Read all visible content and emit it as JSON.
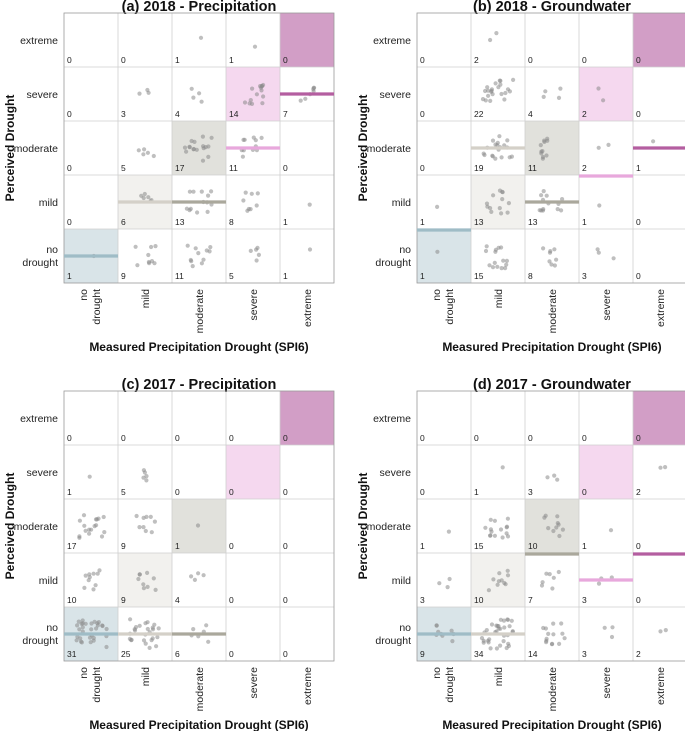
{
  "figure": {
    "row_categories": [
      "extreme",
      "severe",
      "moderate",
      "mild",
      "no drought"
    ],
    "col_categories": [
      "no drought",
      "mild",
      "moderate",
      "severe",
      "extreme"
    ],
    "colors": {
      "no drought": "#9fbcc6",
      "mild": "#d4d0c8",
      "moderate": "#aaa89c",
      "severe": "#e8a8dc",
      "extreme": "#b45ea0",
      "point": "#8a8a8a",
      "grid": "#cfcfcf",
      "frame": "#9a9a9a"
    }
  },
  "chart_data": [
    {
      "type": "heatmap",
      "title": "(a) 2018 - Precipitation",
      "xlabel": "Measured Precipitation Drought (SPI6)",
      "ylabel": "Perceived Drought",
      "rows": [
        "extreme",
        "severe",
        "moderate",
        "mild",
        "no drought"
      ],
      "columns": [
        "no drought",
        "mild",
        "moderate",
        "severe",
        "extreme"
      ],
      "counts": [
        [
          0,
          0,
          1,
          1,
          0
        ],
        [
          0,
          3,
          4,
          14,
          7
        ],
        [
          0,
          5,
          17,
          11,
          0
        ],
        [
          0,
          6,
          13,
          8,
          1
        ],
        [
          1,
          9,
          11,
          5,
          1
        ]
      ],
      "median_lines": [
        {
          "category": "extreme",
          "row": "severe",
          "from_col": "extreme",
          "to_col": "extreme"
        },
        {
          "category": "severe",
          "row": "moderate",
          "from_col": "severe",
          "to_col": "severe"
        },
        {
          "category": "moderate",
          "row": "mild",
          "from_col": "moderate",
          "to_col": "moderate"
        },
        {
          "category": "mild",
          "row": "mild",
          "from_col": "mild",
          "to_col": "mild"
        },
        {
          "category": "no drought",
          "row": "no drought",
          "from_col": "no drought",
          "to_col": "no drought"
        }
      ]
    },
    {
      "type": "heatmap",
      "title": "(b) 2018 - Groundwater",
      "xlabel": "Measured Precipitation Drought (SPI6)",
      "ylabel": "Perceived Drought",
      "rows": [
        "extreme",
        "severe",
        "moderate",
        "mild",
        "no drought"
      ],
      "columns": [
        "no drought",
        "mild",
        "moderate",
        "severe",
        "extreme"
      ],
      "counts": [
        [
          0,
          2,
          0,
          0,
          0
        ],
        [
          0,
          22,
          4,
          2,
          0
        ],
        [
          0,
          19,
          11,
          2,
          1
        ],
        [
          1,
          13,
          13,
          1,
          0
        ],
        [
          1,
          15,
          8,
          3,
          0
        ]
      ],
      "median_lines": [
        {
          "category": "extreme",
          "row": "moderate",
          "from_col": "extreme",
          "to_col": "extreme"
        },
        {
          "category": "severe",
          "row": "mild-top",
          "from_col": "severe",
          "to_col": "severe"
        },
        {
          "category": "moderate",
          "row": "mild",
          "from_col": "moderate",
          "to_col": "moderate"
        },
        {
          "category": "mild",
          "row": "moderate",
          "from_col": "mild",
          "to_col": "mild"
        },
        {
          "category": "no drought",
          "row": "no-drought-top",
          "from_col": "no drought",
          "to_col": "no drought"
        }
      ]
    },
    {
      "type": "heatmap",
      "title": "(c) 2017 - Precipitation",
      "xlabel": "Measured Precipitation Drought (SPI6)",
      "ylabel": "Perceived Drought",
      "rows": [
        "extreme",
        "severe",
        "moderate",
        "mild",
        "no drought"
      ],
      "columns": [
        "no drought",
        "mild",
        "moderate",
        "severe",
        "extreme"
      ],
      "counts": [
        [
          0,
          0,
          0,
          0,
          0
        ],
        [
          1,
          5,
          0,
          0,
          0
        ],
        [
          17,
          9,
          1,
          0,
          0
        ],
        [
          10,
          9,
          4,
          0,
          0
        ],
        [
          31,
          25,
          6,
          0,
          0
        ]
      ],
      "median_lines": [
        {
          "category": "moderate",
          "row": "no drought",
          "from_col": "moderate",
          "to_col": "moderate"
        },
        {
          "category": "mild",
          "row": "no drought",
          "from_col": "mild",
          "to_col": "mild"
        },
        {
          "category": "no drought",
          "row": "no drought",
          "from_col": "no drought",
          "to_col": "no drought"
        }
      ]
    },
    {
      "type": "heatmap",
      "title": "(d) 2017 - Groundwater",
      "xlabel": "Measured Precipitation Drought (SPI6)",
      "ylabel": "Perceived Drought",
      "rows": [
        "extreme",
        "severe",
        "moderate",
        "mild",
        "no drought"
      ],
      "columns": [
        "no drought",
        "mild",
        "moderate",
        "severe",
        "extreme"
      ],
      "counts": [
        [
          0,
          0,
          0,
          0,
          0
        ],
        [
          0,
          1,
          3,
          0,
          2
        ],
        [
          1,
          15,
          10,
          1,
          0
        ],
        [
          3,
          10,
          7,
          3,
          0
        ],
        [
          9,
          34,
          14,
          3,
          2
        ]
      ],
      "median_lines": [
        {
          "category": "extreme",
          "row": "mild-top",
          "from_col": "extreme",
          "to_col": "extreme"
        },
        {
          "category": "severe",
          "row": "mild",
          "from_col": "severe",
          "to_col": "severe"
        },
        {
          "category": "moderate",
          "row": "mild-top",
          "from_col": "moderate",
          "to_col": "moderate"
        },
        {
          "category": "mild",
          "row": "no drought",
          "from_col": "mild",
          "to_col": "mild"
        },
        {
          "category": "no drought",
          "row": "no drought",
          "from_col": "no drought",
          "to_col": "no drought"
        }
      ]
    }
  ]
}
